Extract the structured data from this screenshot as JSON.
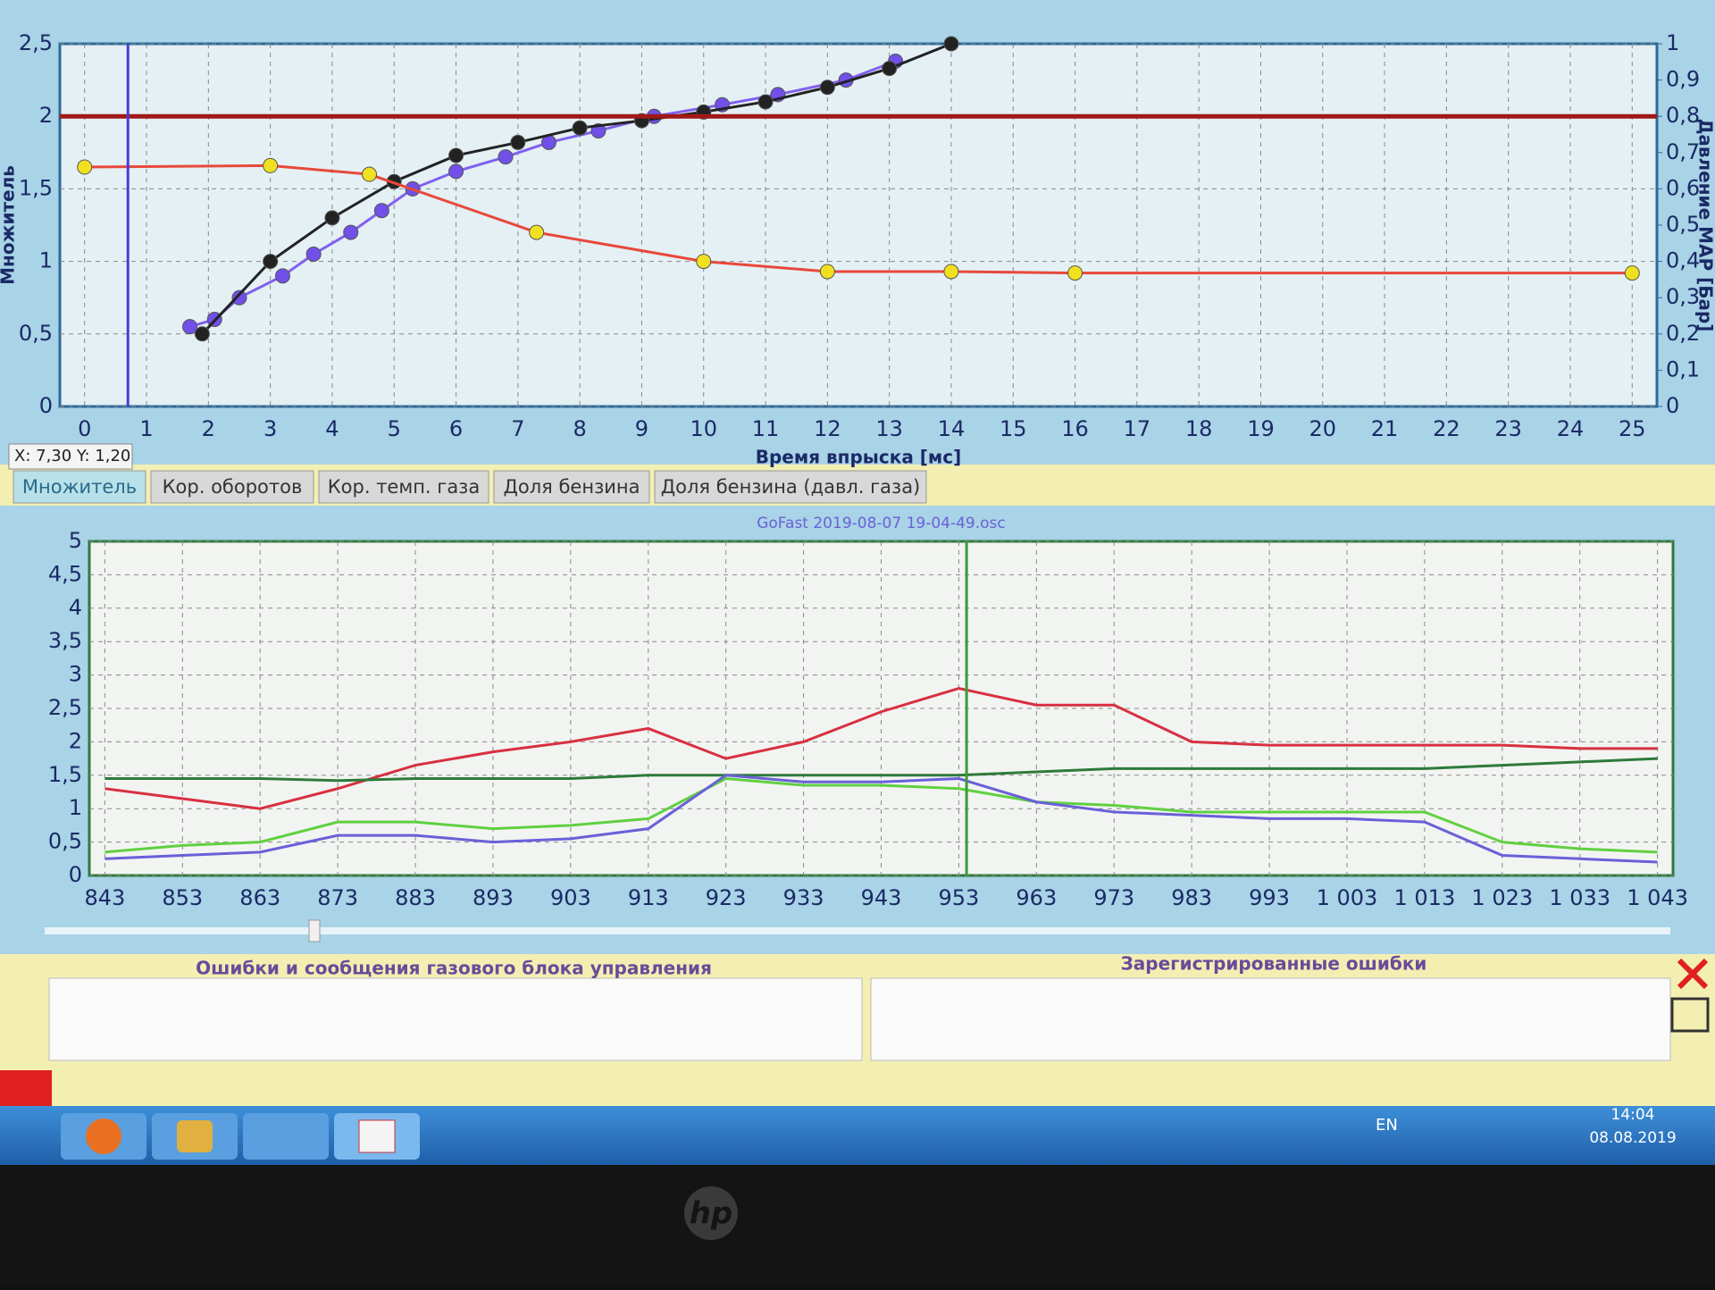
{
  "chart_data": [
    {
      "type": "line",
      "x_label": "Время впрыска [мс]",
      "y_label": "Множитель",
      "y2_label": "Давление MAP [Бар]",
      "xlim": [
        -0.4,
        25.4
      ],
      "xticks": [
        0,
        1,
        2,
        3,
        4,
        5,
        6,
        7,
        8,
        9,
        10,
        11,
        12,
        13,
        14,
        15,
        16,
        17,
        18,
        19,
        20,
        21,
        22,
        23,
        24,
        25
      ],
      "ylim": [
        0,
        2.5
      ],
      "yticks": [
        0,
        {
          "value": 0.5,
          "label": "0,5"
        },
        1,
        {
          "value": 1.5,
          "label": "1,5"
        },
        2,
        {
          "value": 2.5,
          "label": "2,5"
        }
      ],
      "y2lim": [
        0,
        1
      ],
      "y2ticks": [
        0,
        {
          "value": 0.1,
          "label": "0,1"
        },
        {
          "value": 0.2,
          "label": "0,2"
        },
        {
          "value": 0.3,
          "label": "0,3"
        },
        {
          "value": 0.4,
          "label": "0,4"
        },
        {
          "value": 0.5,
          "label": "0,5"
        },
        {
          "value": 0.6,
          "label": "0,6"
        },
        {
          "value": 0.7,
          "label": "0,7"
        },
        {
          "value": 0.8,
          "label": "0,8"
        },
        {
          "value": 0.9,
          "label": "0,9"
        },
        1
      ],
      "grid": true,
      "cursor_x": 0.7,
      "cursor_color": "#4a3ad8",
      "series": [
        {
          "color": "#8060f0",
          "marker_color": "#7050e8",
          "x": [
            1.7,
            2.1,
            2.5,
            3.2,
            3.7,
            4.3,
            4.8,
            5.3,
            6,
            6.8,
            7.5,
            8.3,
            9.2,
            10.3,
            11.2,
            12.3,
            13.1
          ],
          "values": [
            0.55,
            0.6,
            0.75,
            0.9,
            1.05,
            1.2,
            1.35,
            1.5,
            1.62,
            1.72,
            1.82,
            1.9,
            2.0,
            2.08,
            2.15,
            2.25,
            2.38
          ]
        },
        {
          "color": "#222222",
          "marker_color": "#222222",
          "x": [
            1.9,
            3,
            4,
            5,
            6,
            7,
            8,
            9,
            10,
            11,
            12,
            13,
            14
          ],
          "values": [
            0.5,
            1.0,
            1.3,
            1.55,
            1.73,
            1.82,
            1.92,
            1.97,
            2.03,
            2.1,
            2.2,
            2.33,
            2.5
          ]
        },
        {
          "color": "#e8483c",
          "marker_color": "#f0e020",
          "x": [
            0,
            3,
            4.6,
            7.3,
            10,
            12,
            14,
            16,
            25
          ],
          "values": [
            1.65,
            1.66,
            1.6,
            1.2,
            1.0,
            0.93,
            0.93,
            0.92,
            0.92
          ]
        },
        {
          "color": "#a01818",
          "axis": "y2",
          "x": [
            -0.4,
            25.4
          ],
          "values": [
            0.8,
            0.8
          ]
        }
      ]
    },
    {
      "type": "line",
      "title": "GoFast 2019-08-07 19-04-49.osc",
      "xlim": [
        841,
        1045
      ],
      "ylim": [
        0,
        5
      ],
      "yticks": [
        0,
        {
          "value": 0.5,
          "label": "0,5"
        },
        1,
        {
          "value": 1.5,
          "label": "1,5"
        },
        2,
        {
          "value": 2.5,
          "label": "2,5"
        },
        3,
        {
          "value": 3.5,
          "label": "3,5"
        },
        4,
        {
          "value": 4.5,
          "label": "4,5"
        },
        5
      ],
      "x": [
        843,
        853,
        863,
        873,
        883,
        893,
        903,
        913,
        923,
        933,
        943,
        953,
        963,
        973,
        983,
        993,
        1003,
        1013,
        1023,
        1033,
        1043
      ],
      "xticks": [
        843,
        853,
        863,
        873,
        883,
        893,
        903,
        913,
        923,
        933,
        943,
        953,
        963,
        973,
        983,
        993,
        {
          "value": 1003,
          "label": "1 003"
        },
        {
          "value": 1013,
          "label": "1 013"
        },
        {
          "value": 1023,
          "label": "1 023"
        },
        {
          "value": 1033,
          "label": "1 033"
        },
        {
          "value": 1043,
          "label": "1 043"
        }
      ],
      "grid": true,
      "cursor_x": 954,
      "cursor_color": "#3a9a3a",
      "series": [
        {
          "color": "#d83040",
          "values": [
            1.3,
            1.15,
            1.0,
            1.3,
            1.65,
            1.85,
            2.0,
            2.2,
            1.75,
            2.0,
            2.45,
            2.8,
            2.55,
            2.55,
            2.0,
            1.95,
            1.95,
            1.95,
            1.95,
            1.9,
            1.9
          ]
        },
        {
          "color": "#2e7a3a",
          "values": [
            1.45,
            1.45,
            1.45,
            1.42,
            1.45,
            1.45,
            1.45,
            1.5,
            1.5,
            1.5,
            1.5,
            1.5,
            1.55,
            1.6,
            1.6,
            1.6,
            1.6,
            1.6,
            1.65,
            1.7,
            1.75
          ]
        },
        {
          "color": "#60d040",
          "values": [
            0.35,
            0.45,
            0.5,
            0.8,
            0.8,
            0.7,
            0.75,
            0.85,
            1.45,
            1.35,
            1.35,
            1.3,
            1.1,
            1.05,
            0.95,
            0.95,
            0.95,
            0.95,
            0.5,
            0.4,
            0.35
          ]
        },
        {
          "color": "#6a60d8",
          "values": [
            0.25,
            0.3,
            0.35,
            0.6,
            0.6,
            0.5,
            0.55,
            0.7,
            1.5,
            1.4,
            1.4,
            1.45,
            1.1,
            0.95,
            0.9,
            0.85,
            0.85,
            0.8,
            0.3,
            0.25,
            0.2
          ]
        }
      ]
    }
  ],
  "status": "X: 7,30  Y: 1,20",
  "tabs": [
    "Множитель",
    "Кор. оборотов",
    "Кор. темп. газа",
    "Доля бензина",
    "Доля бензина (давл. газа)"
  ],
  "panels": [
    "Ошибки и сообщения газового блока управления",
    "Зарегистрированные ошибки"
  ],
  "taskbar": {
    "lang": "EN",
    "time": "14:04",
    "date": "08.08.2019"
  },
  "bezel_logo": "hp"
}
